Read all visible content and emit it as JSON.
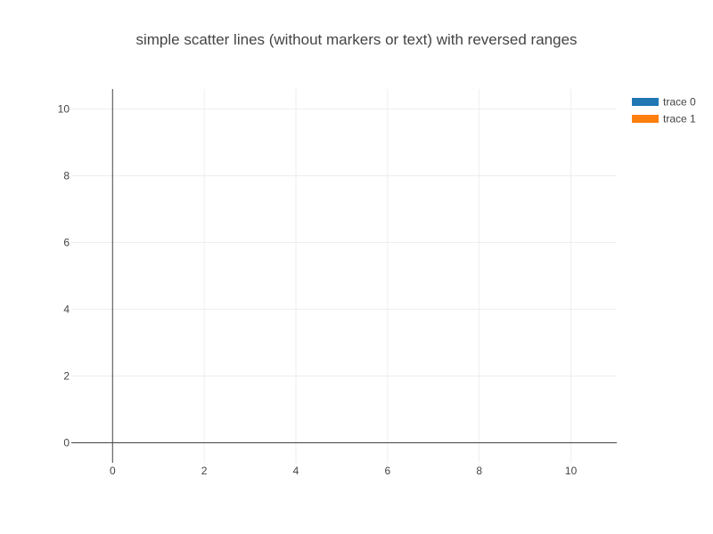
{
  "chart_data": {
    "type": "line",
    "title": "simple scatter lines (without markers or text) with reversed ranges",
    "xlabel": "",
    "ylabel": "",
    "xlim": [
      -0.9,
      11
    ],
    "ylim": [
      10.6,
      -0.6
    ],
    "y_reversed": true,
    "x_ticks": [
      0,
      2,
      4,
      6,
      8,
      10
    ],
    "y_ticks": [
      0,
      2,
      4,
      6,
      8,
      10
    ],
    "grid": true,
    "legend_position": "top-right",
    "series": [
      {
        "name": "trace 0",
        "x": [],
        "y": [],
        "color": "#1f77b4"
      },
      {
        "name": "trace 1",
        "x": [],
        "y": [],
        "color": "#ff7f0e"
      }
    ]
  }
}
